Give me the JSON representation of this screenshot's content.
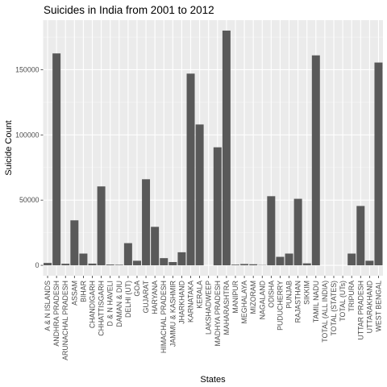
{
  "chart_data": {
    "type": "bar",
    "title": "Suicides in India from 2001 to 2012",
    "xlabel": "States",
    "ylabel": "Suicide Count",
    "ylim": [
      -8000,
      188000
    ],
    "yticks": [
      0,
      50000,
      100000,
      150000
    ],
    "ytick_labels": [
      "0",
      "50000",
      "100000",
      "150000"
    ],
    "grid": true,
    "bar_color": "#595959",
    "panel_color": "#ebebeb",
    "categories": [
      "A & N ISLANDS",
      "ANDHRA PRADESH",
      "ARUNACHAL PRADESH",
      "ASSAM",
      "BIHAR",
      "CHANDIGARH",
      "CHHATTISGARH",
      "D & N HAVELI",
      "DAMAN & DIU",
      "DELHI (UT)",
      "GOA",
      "GUJARAT",
      "HARYANA",
      "HIMACHAL PRADESH",
      "JAMMU & KASHMIR",
      "JHARKHAND",
      "KARNATAKA",
      "KERALA",
      "LAKSHADWEEP",
      "MADHYA PRADESH",
      "MAHARASHTRA",
      "MANIPUR",
      "MEGHALAYA",
      "MIZORAM",
      "NAGALAND",
      "ODISHA",
      "PUDUCHERRY",
      "PUNJAB",
      "RAJASTHAN",
      "SIKKIM",
      "TAMIL NADU",
      "TOTAL (ALL INDIA)",
      "TOTAL (STATES)",
      "TOTAL (UTs)",
      "TRIPURA",
      "UTTAR PRADESH",
      "UTTARAKHAND",
      "WEST BENGAL"
    ],
    "values": [
      1800,
      162500,
      1200,
      34500,
      9000,
      1300,
      60500,
      600,
      400,
      17000,
      3500,
      66000,
      29500,
      5500,
      2500,
      10000,
      147000,
      108000,
      0,
      90500,
      180000,
      500,
      1000,
      800,
      200,
      53000,
      6500,
      9000,
      51000,
      1500,
      161000,
      0,
      0,
      0,
      9000,
      45500,
      3500,
      155500
    ]
  }
}
